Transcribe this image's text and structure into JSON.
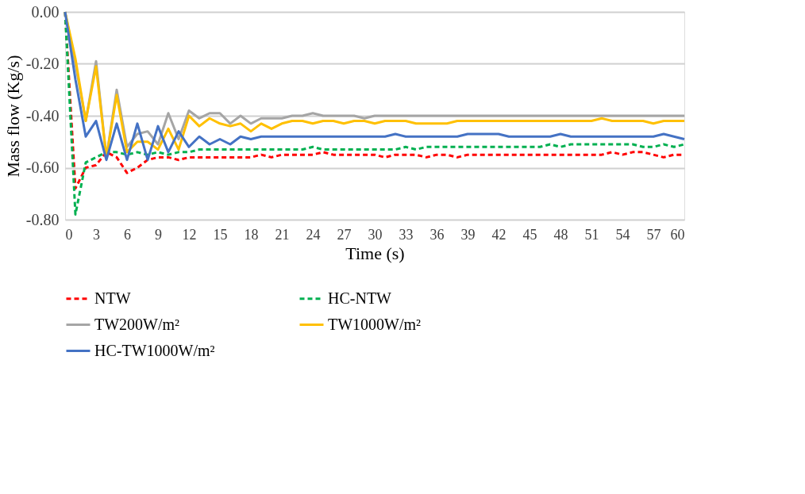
{
  "chart_data": {
    "type": "line",
    "xlabel": "Time (s)",
    "ylabel": "Mass flow  (Kg/s)",
    "x": [
      0,
      1,
      2,
      3,
      4,
      5,
      6,
      7,
      8,
      9,
      10,
      11,
      12,
      13,
      14,
      15,
      16,
      17,
      18,
      19,
      20,
      21,
      22,
      23,
      24,
      25,
      26,
      27,
      28,
      29,
      30,
      31,
      32,
      33,
      34,
      35,
      36,
      37,
      38,
      39,
      40,
      41,
      42,
      43,
      44,
      45,
      46,
      47,
      48,
      49,
      50,
      51,
      52,
      53,
      54,
      55,
      56,
      57,
      58,
      59,
      60
    ],
    "xlim": [
      0,
      60
    ],
    "xticks": [
      0,
      3,
      6,
      9,
      12,
      15,
      18,
      21,
      24,
      27,
      30,
      33,
      36,
      39,
      42,
      45,
      48,
      51,
      54,
      57,
      60
    ],
    "ylim": [
      -0.8,
      0
    ],
    "yticks": [
      {
        "value": -0.8,
        "label": "-0.80"
      },
      {
        "value": -0.6,
        "label": "-0.60"
      },
      {
        "value": -0.4,
        "label": "-0.40"
      },
      {
        "value": -0.2,
        "label": "-0.20"
      },
      {
        "value": 0,
        "label": "0.00"
      }
    ],
    "grid": "y",
    "legend": "bottom",
    "marker": "none",
    "series": [
      {
        "name": "NTW",
        "color": "#ff0000",
        "line_style": "dashed",
        "values": [
          0,
          -0.68,
          -0.6,
          -0.59,
          -0.54,
          -0.56,
          -0.62,
          -0.6,
          -0.57,
          -0.56,
          -0.56,
          -0.57,
          -0.56,
          -0.56,
          -0.56,
          -0.56,
          -0.56,
          -0.56,
          -0.56,
          -0.55,
          -0.56,
          -0.55,
          -0.55,
          -0.55,
          -0.55,
          -0.54,
          -0.55,
          -0.55,
          -0.55,
          -0.55,
          -0.55,
          -0.56,
          -0.55,
          -0.55,
          -0.55,
          -0.56,
          -0.55,
          -0.55,
          -0.56,
          -0.55,
          -0.55,
          -0.55,
          -0.55,
          -0.55,
          -0.55,
          -0.55,
          -0.55,
          -0.55,
          -0.55,
          -0.55,
          -0.55,
          -0.55,
          -0.55,
          -0.54,
          -0.55,
          -0.54,
          -0.54,
          -0.55,
          -0.56,
          -0.55,
          -0.55
        ]
      },
      {
        "name": "HC-NTW",
        "color": "#00b050",
        "line_style": "dashed",
        "values": [
          0,
          -0.78,
          -0.58,
          -0.56,
          -0.54,
          -0.54,
          -0.55,
          -0.54,
          -0.55,
          -0.54,
          -0.55,
          -0.54,
          -0.54,
          -0.53,
          -0.53,
          -0.53,
          -0.53,
          -0.53,
          -0.53,
          -0.53,
          -0.53,
          -0.53,
          -0.53,
          -0.53,
          -0.52,
          -0.53,
          -0.53,
          -0.53,
          -0.53,
          -0.53,
          -0.53,
          -0.53,
          -0.53,
          -0.52,
          -0.53,
          -0.52,
          -0.52,
          -0.52,
          -0.52,
          -0.52,
          -0.52,
          -0.52,
          -0.52,
          -0.52,
          -0.52,
          -0.52,
          -0.52,
          -0.51,
          -0.52,
          -0.51,
          -0.51,
          -0.51,
          -0.51,
          -0.51,
          -0.51,
          -0.51,
          -0.52,
          -0.52,
          -0.51,
          -0.52,
          -0.51
        ]
      },
      {
        "name": "TW200W/m²",
        "color": "#a5a5a5",
        "line_style": "solid",
        "values": [
          0,
          -0.2,
          -0.42,
          -0.19,
          -0.56,
          -0.3,
          -0.52,
          -0.47,
          -0.46,
          -0.51,
          -0.39,
          -0.49,
          -0.38,
          -0.41,
          -0.39,
          -0.39,
          -0.43,
          -0.4,
          -0.43,
          -0.41,
          -0.41,
          -0.41,
          -0.4,
          -0.4,
          -0.39,
          -0.4,
          -0.4,
          -0.4,
          -0.4,
          -0.41,
          -0.4,
          -0.4,
          -0.4,
          -0.4,
          -0.4,
          -0.4,
          -0.4,
          -0.4,
          -0.4,
          -0.4,
          -0.4,
          -0.4,
          -0.4,
          -0.4,
          -0.4,
          -0.4,
          -0.4,
          -0.4,
          -0.4,
          -0.4,
          -0.4,
          -0.4,
          -0.4,
          -0.4,
          -0.4,
          -0.4,
          -0.4,
          -0.4,
          -0.4,
          -0.4,
          -0.4
        ]
      },
      {
        "name": "TW1000W/m²",
        "color": "#ffc000",
        "line_style": "solid",
        "values": [
          0,
          -0.18,
          -0.42,
          -0.21,
          -0.56,
          -0.32,
          -0.54,
          -0.5,
          -0.5,
          -0.53,
          -0.45,
          -0.53,
          -0.4,
          -0.44,
          -0.41,
          -0.43,
          -0.44,
          -0.43,
          -0.46,
          -0.43,
          -0.45,
          -0.43,
          -0.42,
          -0.42,
          -0.43,
          -0.42,
          -0.42,
          -0.43,
          -0.42,
          -0.42,
          -0.43,
          -0.42,
          -0.42,
          -0.42,
          -0.43,
          -0.43,
          -0.43,
          -0.43,
          -0.42,
          -0.42,
          -0.42,
          -0.42,
          -0.42,
          -0.42,
          -0.42,
          -0.42,
          -0.42,
          -0.42,
          -0.42,
          -0.42,
          -0.42,
          -0.42,
          -0.41,
          -0.42,
          -0.42,
          -0.42,
          -0.42,
          -0.43,
          -0.42,
          -0.42,
          -0.42
        ]
      },
      {
        "name": "HC-TW1000W/m²",
        "color": "#4472c4",
        "line_style": "solid",
        "values": [
          0,
          -0.26,
          -0.48,
          -0.42,
          -0.57,
          -0.43,
          -0.57,
          -0.43,
          -0.57,
          -0.44,
          -0.54,
          -0.46,
          -0.52,
          -0.48,
          -0.51,
          -0.49,
          -0.51,
          -0.48,
          -0.49,
          -0.48,
          -0.48,
          -0.48,
          -0.48,
          -0.48,
          -0.48,
          -0.48,
          -0.48,
          -0.48,
          -0.48,
          -0.48,
          -0.48,
          -0.48,
          -0.47,
          -0.48,
          -0.48,
          -0.48,
          -0.48,
          -0.48,
          -0.48,
          -0.47,
          -0.47,
          -0.47,
          -0.47,
          -0.48,
          -0.48,
          -0.48,
          -0.48,
          -0.48,
          -0.47,
          -0.48,
          -0.48,
          -0.48,
          -0.48,
          -0.48,
          -0.48,
          -0.48,
          -0.48,
          -0.48,
          -0.47,
          -0.48,
          -0.49
        ]
      }
    ]
  }
}
